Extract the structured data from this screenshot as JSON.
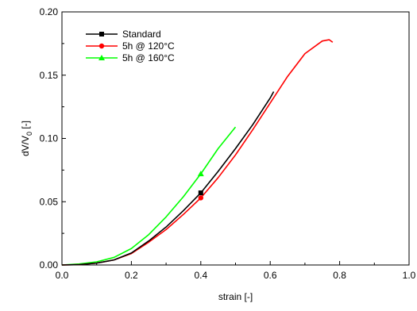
{
  "chart_data": {
    "type": "line",
    "title": "",
    "xlabel": "strain [-]",
    "ylabel_main": "dV/V",
    "ylabel_sub": "0",
    "ylabel_suffix": " [-]",
    "xlim": [
      0.0,
      1.0
    ],
    "ylim": [
      0.0,
      0.2
    ],
    "x_ticks": [
      0.0,
      0.2,
      0.4,
      0.6,
      0.8,
      1.0
    ],
    "x_tick_labels": [
      "0.0",
      "0.2",
      "0.4",
      "0.6",
      "0.8",
      "1.0"
    ],
    "y_ticks": [
      0.0,
      0.05,
      0.1,
      0.15,
      0.2
    ],
    "y_tick_labels": [
      "0.00",
      "0.05",
      "0.10",
      "0.15",
      "0.20"
    ],
    "grid": false,
    "legend_position": "top-left",
    "series": [
      {
        "name": "Standard",
        "color": "#000000",
        "marker": "square",
        "x": [
          0.0,
          0.05,
          0.1,
          0.15,
          0.2,
          0.25,
          0.3,
          0.35,
          0.4,
          0.45,
          0.5,
          0.55,
          0.6,
          0.61
        ],
        "y": [
          0.0,
          0.0003,
          0.0015,
          0.004,
          0.0095,
          0.019,
          0.03,
          0.043,
          0.057,
          0.074,
          0.092,
          0.111,
          0.132,
          0.137
        ],
        "marker_x": [
          0.4
        ]
      },
      {
        "name": "5h @ 120°C",
        "color": "#ff0000",
        "marker": "circle",
        "x": [
          0.0,
          0.05,
          0.1,
          0.15,
          0.2,
          0.25,
          0.3,
          0.35,
          0.4,
          0.45,
          0.5,
          0.55,
          0.6,
          0.65,
          0.7,
          0.75,
          0.77,
          0.78
        ],
        "y": [
          0.0,
          0.0003,
          0.0015,
          0.004,
          0.009,
          0.018,
          0.028,
          0.04,
          0.053,
          0.069,
          0.087,
          0.107,
          0.128,
          0.149,
          0.167,
          0.177,
          0.178,
          0.176
        ],
        "marker_x": [
          0.4
        ]
      },
      {
        "name": "5h @ 160°C",
        "color": "#00ff00",
        "marker": "triangle",
        "x": [
          0.0,
          0.05,
          0.1,
          0.15,
          0.2,
          0.25,
          0.3,
          0.35,
          0.4,
          0.45,
          0.5
        ],
        "y": [
          0.0,
          0.0008,
          0.0025,
          0.006,
          0.013,
          0.024,
          0.038,
          0.054,
          0.072,
          0.092,
          0.109
        ],
        "marker_x": [
          0.4
        ]
      }
    ]
  }
}
